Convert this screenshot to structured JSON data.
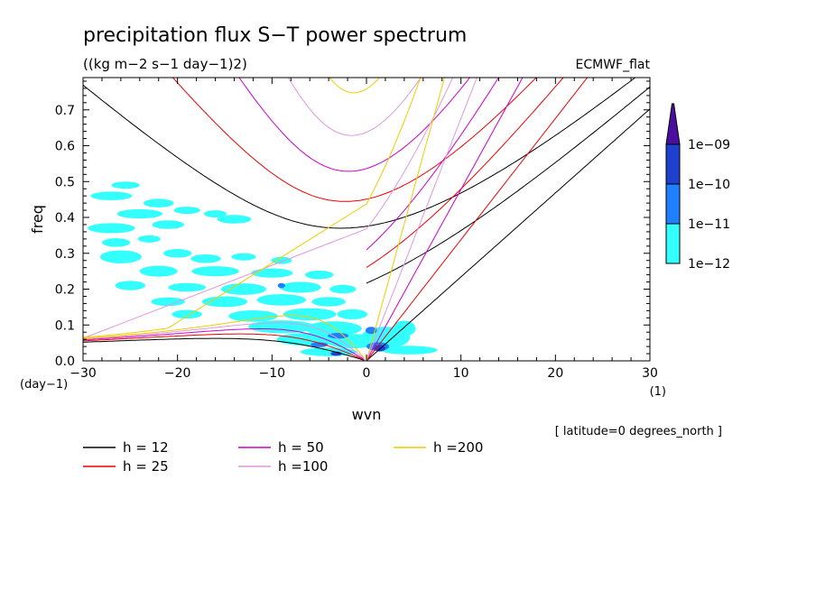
{
  "chart_data": {
    "type": "contour",
    "title": "precipitation flux S−T power spectrum",
    "subtitle": "((kg m−2 s−1 day−1)2)",
    "dataset_label": "ECMWF_flat",
    "xlabel": "wvn",
    "ylabel": "freq",
    "x_unit": "(1)",
    "y_unit": "(day−1)",
    "xlim": [
      -30,
      30
    ],
    "ylim": [
      0.0,
      0.79
    ],
    "x_ticks": [
      "−30",
      "−20",
      "−10",
      "0",
      "10",
      "20",
      "30"
    ],
    "y_ticks": [
      "0.0",
      "0.1",
      "0.2",
      "0.3",
      "0.4",
      "0.5",
      "0.6",
      "0.7"
    ],
    "footnote": "[ latitude=0 degrees_north ]",
    "colorbar": {
      "labels": [
        "1e−12",
        "1e−11",
        "1e−10",
        "1e−09"
      ],
      "colors": [
        "#33ffff",
        "#1f7fff",
        "#1f3fcf",
        "#4b0f9f"
      ]
    },
    "legend": [
      {
        "label": "h = 12",
        "color": "#000000"
      },
      {
        "label": "h = 25",
        "color": "#ee0000"
      },
      {
        "label": "h = 50",
        "color": "#cc00cc"
      },
      {
        "label": "h =100",
        "color": "#dd99dd"
      },
      {
        "label": "h =200",
        "color": "#eecc00"
      }
    ],
    "dispersion_curves": {
      "h_values": [
        12,
        25,
        50,
        100,
        200
      ],
      "colors": [
        "#000000",
        "#ee0000",
        "#cc00cc",
        "#dd99dd",
        "#eecc00"
      ]
    },
    "power_blobs": [
      {
        "x": -27,
        "y": 0.46,
        "rx": 2.2,
        "ry": 0.012,
        "level": 0
      },
      {
        "x": -25.5,
        "y": 0.49,
        "rx": 1.5,
        "ry": 0.01,
        "level": 0
      },
      {
        "x": -22,
        "y": 0.44,
        "rx": 1.6,
        "ry": 0.012,
        "level": 0
      },
      {
        "x": -24,
        "y": 0.41,
        "rx": 2.4,
        "ry": 0.013,
        "level": 0
      },
      {
        "x": -19,
        "y": 0.42,
        "rx": 1.4,
        "ry": 0.01,
        "level": 0
      },
      {
        "x": -16,
        "y": 0.41,
        "rx": 1.2,
        "ry": 0.01,
        "level": 0
      },
      {
        "x": -14,
        "y": 0.395,
        "rx": 1.8,
        "ry": 0.012,
        "level": 0
      },
      {
        "x": -27,
        "y": 0.37,
        "rx": 2.5,
        "ry": 0.014,
        "level": 0
      },
      {
        "x": -21,
        "y": 0.38,
        "rx": 1.7,
        "ry": 0.012,
        "level": 0
      },
      {
        "x": -26.5,
        "y": 0.33,
        "rx": 1.5,
        "ry": 0.012,
        "level": 0
      },
      {
        "x": -23,
        "y": 0.34,
        "rx": 1.2,
        "ry": 0.01,
        "level": 0
      },
      {
        "x": -26,
        "y": 0.29,
        "rx": 2.2,
        "ry": 0.018,
        "level": 0
      },
      {
        "x": -20,
        "y": 0.3,
        "rx": 1.5,
        "ry": 0.012,
        "level": 0
      },
      {
        "x": -17,
        "y": 0.285,
        "rx": 1.6,
        "ry": 0.012,
        "level": 0
      },
      {
        "x": -13,
        "y": 0.29,
        "rx": 1.3,
        "ry": 0.01,
        "level": 0
      },
      {
        "x": -9,
        "y": 0.28,
        "rx": 1.1,
        "ry": 0.01,
        "level": 0
      },
      {
        "x": -22,
        "y": 0.25,
        "rx": 2.0,
        "ry": 0.015,
        "level": 0
      },
      {
        "x": -16,
        "y": 0.25,
        "rx": 2.5,
        "ry": 0.014,
        "level": 0
      },
      {
        "x": -10,
        "y": 0.245,
        "rx": 2.2,
        "ry": 0.013,
        "level": 0
      },
      {
        "x": -5,
        "y": 0.24,
        "rx": 1.5,
        "ry": 0.012,
        "level": 0
      },
      {
        "x": -25,
        "y": 0.21,
        "rx": 1.6,
        "ry": 0.013,
        "level": 0
      },
      {
        "x": -19,
        "y": 0.205,
        "rx": 2.0,
        "ry": 0.012,
        "level": 0
      },
      {
        "x": -13,
        "y": 0.2,
        "rx": 2.4,
        "ry": 0.016,
        "level": 0
      },
      {
        "x": -7,
        "y": 0.205,
        "rx": 2.2,
        "ry": 0.015,
        "level": 0
      },
      {
        "x": -2.5,
        "y": 0.2,
        "rx": 1.4,
        "ry": 0.012,
        "level": 0
      },
      {
        "x": -21,
        "y": 0.165,
        "rx": 1.8,
        "ry": 0.012,
        "level": 0
      },
      {
        "x": -15,
        "y": 0.165,
        "rx": 2.4,
        "ry": 0.015,
        "level": 0
      },
      {
        "x": -9,
        "y": 0.17,
        "rx": 2.6,
        "ry": 0.016,
        "level": 0
      },
      {
        "x": -4,
        "y": 0.165,
        "rx": 1.8,
        "ry": 0.013,
        "level": 0
      },
      {
        "x": -19,
        "y": 0.13,
        "rx": 1.6,
        "ry": 0.012,
        "level": 0
      },
      {
        "x": -12,
        "y": 0.125,
        "rx": 2.6,
        "ry": 0.016,
        "level": 0
      },
      {
        "x": -6,
        "y": 0.13,
        "rx": 2.8,
        "ry": 0.017,
        "level": 0
      },
      {
        "x": -1.5,
        "y": 0.13,
        "rx": 1.6,
        "ry": 0.014,
        "level": 0
      },
      {
        "x": -9,
        "y": 0.095,
        "rx": 3.5,
        "ry": 0.018,
        "level": 0
      },
      {
        "x": -3.5,
        "y": 0.09,
        "rx": 3.0,
        "ry": 0.02,
        "level": 0
      },
      {
        "x": -6,
        "y": 0.06,
        "rx": 3.5,
        "ry": 0.018,
        "level": 0
      },
      {
        "x": -1.5,
        "y": 0.055,
        "rx": 2.8,
        "ry": 0.02,
        "level": 0
      },
      {
        "x": 2,
        "y": 0.065,
        "rx": 2.6,
        "ry": 0.03,
        "level": 0
      },
      {
        "x": 4,
        "y": 0.09,
        "rx": 1.2,
        "ry": 0.022,
        "level": 0
      },
      {
        "x": 4.5,
        "y": 0.03,
        "rx": 3.0,
        "ry": 0.012,
        "level": 0
      },
      {
        "x": -4,
        "y": 0.025,
        "rx": 3.0,
        "ry": 0.012,
        "level": 0
      },
      {
        "x": -3,
        "y": 0.07,
        "rx": 1.1,
        "ry": 0.008,
        "level": 1
      },
      {
        "x": -5,
        "y": 0.045,
        "rx": 0.9,
        "ry": 0.007,
        "level": 1
      },
      {
        "x": 0.5,
        "y": 0.085,
        "rx": 0.6,
        "ry": 0.01,
        "level": 1
      },
      {
        "x": 1.2,
        "y": 0.04,
        "rx": 1.2,
        "ry": 0.012,
        "level": 1
      },
      {
        "x": 1.4,
        "y": 0.035,
        "rx": 0.6,
        "ry": 0.009,
        "level": 2
      },
      {
        "x": -3.2,
        "y": 0.02,
        "rx": 0.6,
        "ry": 0.006,
        "level": 2
      },
      {
        "x": -9,
        "y": 0.21,
        "rx": 0.4,
        "ry": 0.007,
        "level": 1
      }
    ]
  }
}
